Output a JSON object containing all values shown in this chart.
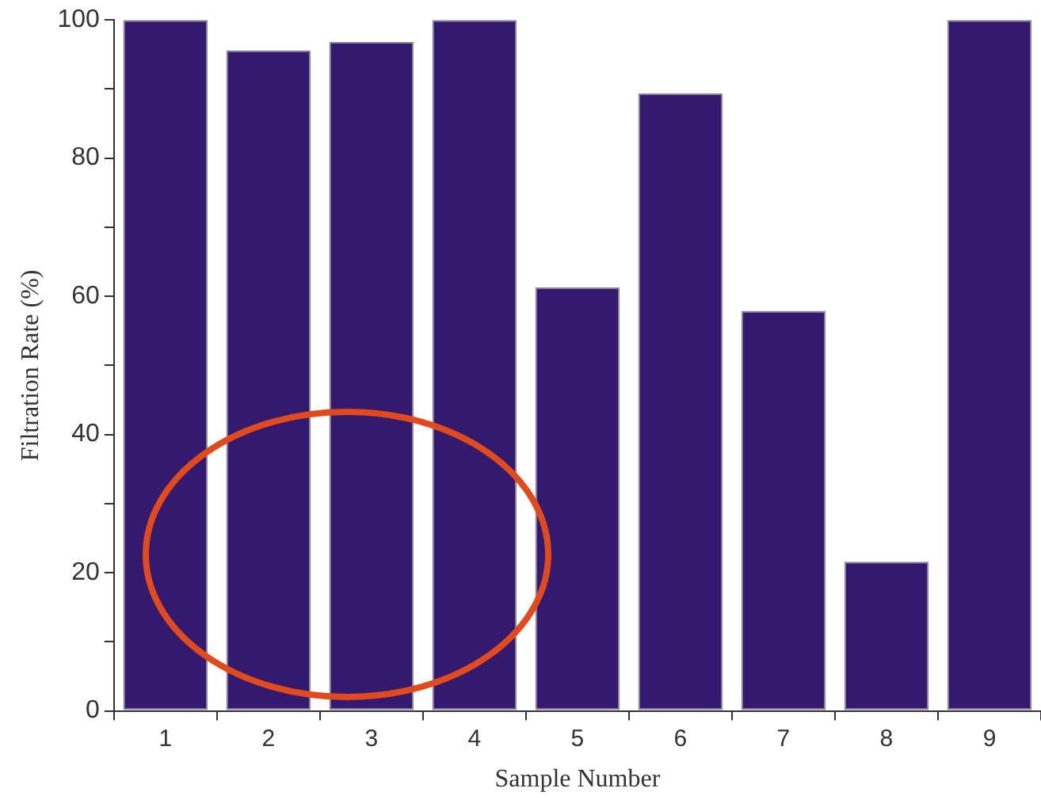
{
  "chart_data": {
    "type": "bar",
    "xlabel": "Sample Number",
    "ylabel": "Filtration Rate (%)",
    "categories": [
      "1",
      "2",
      "3",
      "4",
      "5",
      "6",
      "7",
      "8",
      "9"
    ],
    "values": [
      100,
      95.6,
      96.8,
      100,
      61.3,
      89.4,
      57.9,
      21.6,
      100
    ],
    "color": "#331a6e",
    "ylim": [
      0,
      100
    ],
    "yticks": [
      0,
      {
        "value": 10,
        "label": null
      },
      20,
      {
        "value": 30,
        "label": null
      },
      40,
      {
        "value": 50,
        "label": null
      },
      60,
      {
        "value": 70,
        "label": null
      },
      80,
      {
        "value": 90,
        "label": null
      },
      100
    ],
    "grid": false,
    "legend": false
  }
}
